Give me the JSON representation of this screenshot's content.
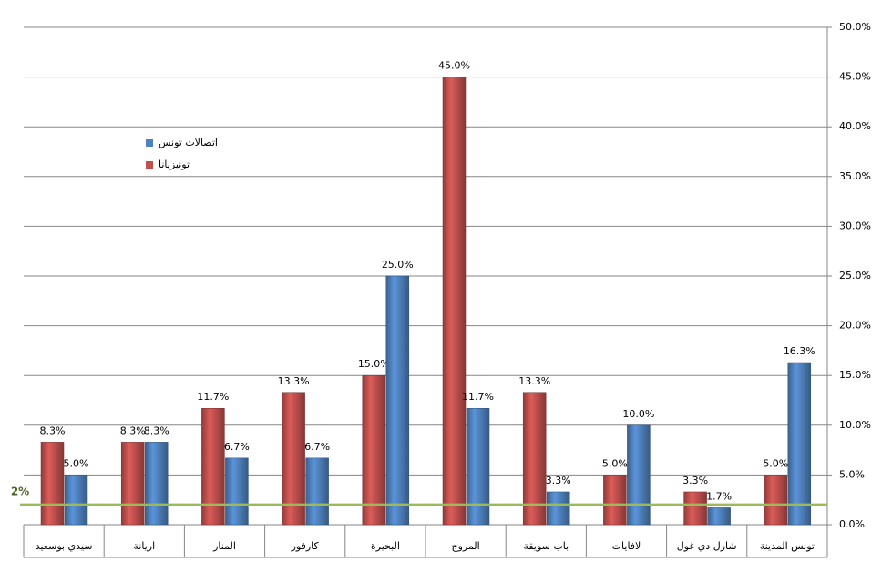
{
  "chart_data": {
    "type": "bar",
    "categories": [
      "سيدي بوسعيد",
      "اريانة",
      "المنار",
      "كارفور",
      "البحيرة",
      "المروج",
      "باب سويقة",
      "لافايات",
      "شارل دي غول",
      "تونس المدينة"
    ],
    "series": [
      {
        "name": "تونيزيانا",
        "color": "#c0504d",
        "values": [
          8.3,
          8.3,
          11.7,
          13.3,
          15.0,
          45.0,
          13.3,
          5.0,
          3.3,
          5.0
        ],
        "value_labels": [
          "8.3%",
          "8.3%",
          "11.7%",
          "13.3%",
          "15.0%",
          "45.0%",
          "13.3%",
          "5.0%",
          "3.3%",
          "5.0%"
        ]
      },
      {
        "name": "اتصالات تونس",
        "color": "#4f81bd",
        "values": [
          5.0,
          8.3,
          6.7,
          6.7,
          25.0,
          11.7,
          3.3,
          10.0,
          1.7,
          16.3
        ],
        "value_labels": [
          "5.0%",
          "8.3%",
          "6.7%",
          "6.7%",
          "25.0%",
          "11.7%",
          "3.3%",
          "10.0%",
          "1.7%",
          "16.3%"
        ]
      }
    ],
    "ylim": [
      0,
      50
    ],
    "yticks": [
      {
        "value": 0,
        "label": "0.0%"
      },
      {
        "value": 5,
        "label": "5.0%"
      },
      {
        "value": 10,
        "label": "10.0%"
      },
      {
        "value": 15,
        "label": "15.0%"
      },
      {
        "value": 20,
        "label": "20.0%"
      },
      {
        "value": 25,
        "label": "25.0%"
      },
      {
        "value": 30,
        "label": "30.0%"
      },
      {
        "value": 35,
        "label": "35.0%"
      },
      {
        "value": 40,
        "label": "40.0%"
      },
      {
        "value": 45,
        "label": "45.0%"
      },
      {
        "value": 50,
        "label": "50.0%"
      }
    ],
    "grid": true,
    "reference_line": {
      "value": 2,
      "label": "2%",
      "color": "#9bbb59"
    }
  }
}
